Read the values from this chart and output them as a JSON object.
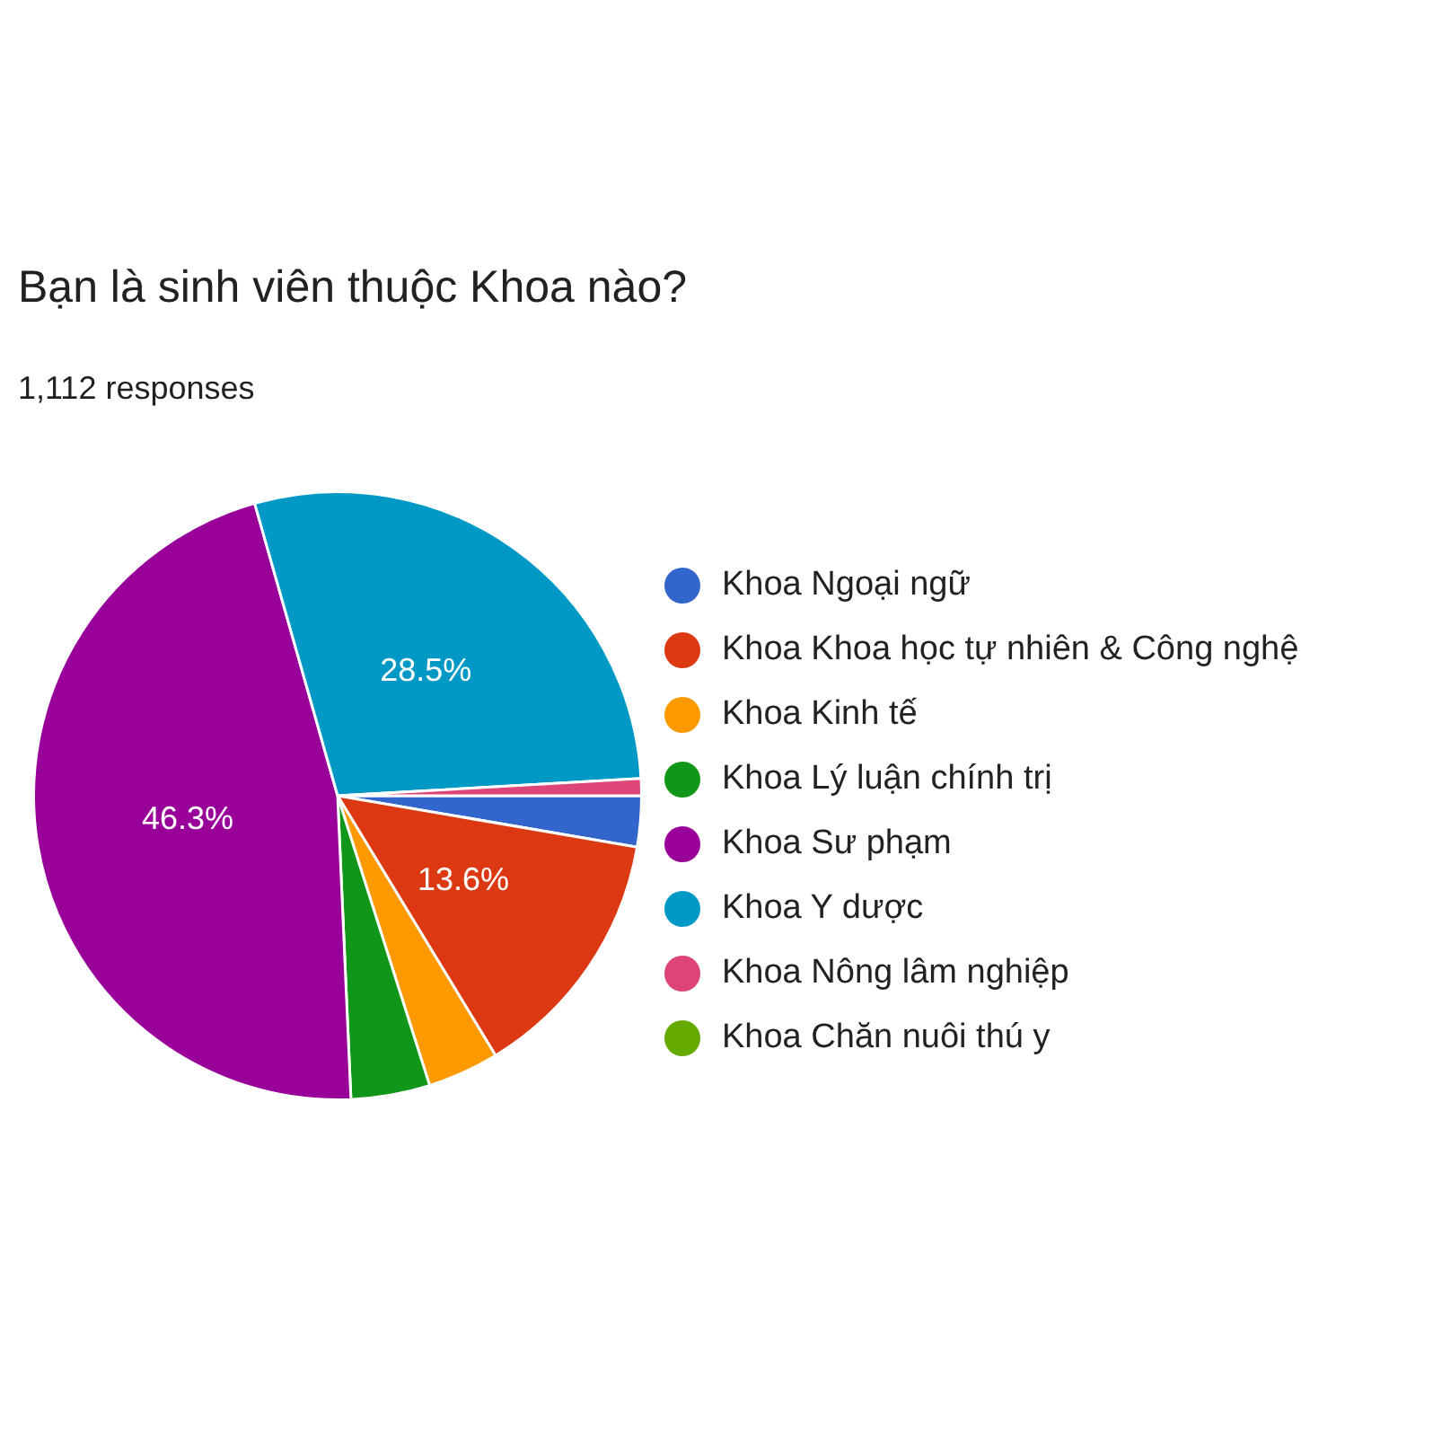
{
  "chart_data": {
    "type": "pie",
    "title": "Bạn là sinh viên thuộc Khoa nào?",
    "subtitle": "1,112 responses",
    "categories": [
      "Khoa Ngoại ngữ",
      "Khoa Khoa học tự nhiên & Công nghệ",
      "Khoa Kinh tế",
      "Khoa Lý luận chính trị",
      "Khoa Sư phạm",
      "Khoa Y dược",
      "Khoa Nông lâm nghiệp",
      "Khoa Chăn nuôi thú y"
    ],
    "values": [
      2.7,
      13.6,
      3.8,
      4.2,
      46.3,
      28.5,
      0.9,
      0
    ],
    "colors": [
      "#3366cc",
      "#dc3912",
      "#ff9900",
      "#109618",
      "#990099",
      "#0099c6",
      "#dd4477",
      "#66aa00"
    ],
    "value_labels": [
      null,
      "13.6%",
      null,
      null,
      "46.3%",
      "28.5%",
      null,
      null
    ],
    "legend": "right"
  }
}
